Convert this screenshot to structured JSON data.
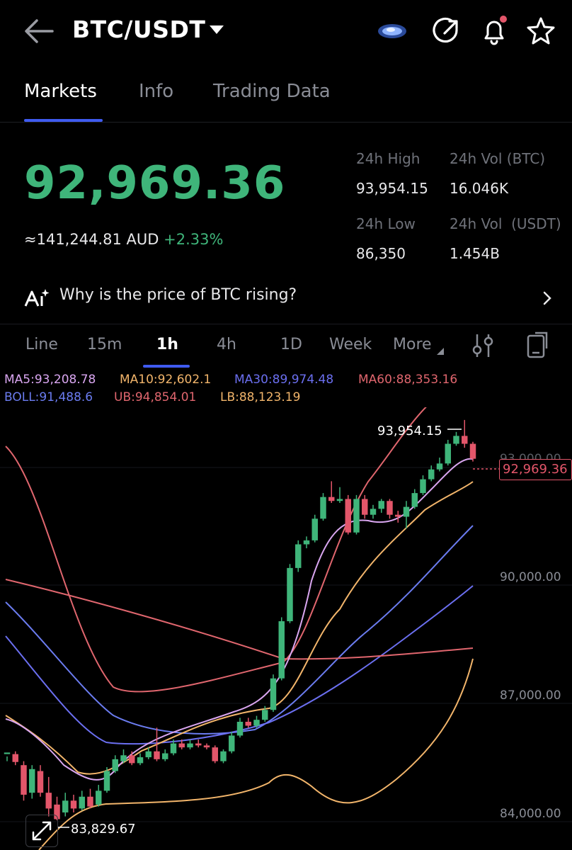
{
  "header": {
    "pair": "BTC/USDT"
  },
  "tabs": [
    {
      "label": "Markets",
      "active": true
    },
    {
      "label": "Info",
      "active": false
    },
    {
      "label": "Trading Data",
      "active": false
    }
  ],
  "ticker": {
    "price": "92,969.36",
    "price_color": "#3fb57a",
    "approx_value": "≈141,244.81",
    "approx_currency": "AUD",
    "change_pct": "+2.33%",
    "stats": {
      "high_label": "24h High",
      "high_value": "93,954.15",
      "vol_btc_label": "24h Vol (BTC)",
      "vol_btc_value": "16.046K",
      "low_label": "24h Low",
      "low_value": "86,350",
      "vol_usdt_label": "24h Vol  (USDT)",
      "vol_usdt_value": "1.454B"
    }
  },
  "insight": {
    "text": "Why is the price of BTC rising?"
  },
  "intervals": [
    {
      "label": "Line",
      "active": false
    },
    {
      "label": "15m",
      "active": false
    },
    {
      "label": "1h",
      "active": true
    },
    {
      "label": "4h",
      "active": false
    },
    {
      "label": "1D",
      "active": false
    },
    {
      "label": "Week",
      "active": false
    },
    {
      "label": "More",
      "active": false
    }
  ],
  "indicators": {
    "ma5": "MA5:93,208.78",
    "ma10": "MA10:92,602.1",
    "ma30": "MA30:89,974.48",
    "ma60": "MA60:88,353.16",
    "boll": "BOLL:91,488.6",
    "ub": "UB:94,854.01",
    "lb": "LB:88,123.19"
  },
  "colors": {
    "up": "#3fb57a",
    "down": "#e3566a",
    "accent": "#3f5bf0",
    "ma5": "#d9a6f0",
    "ma10": "#f2b56b",
    "ma30": "#6b6ff0",
    "ma60": "#e0666e",
    "boll": "#6b7cf0"
  },
  "chart_data": {
    "type": "candlestick",
    "y_axis_labels": [
      "90,000.00",
      "87,000.00",
      "84,000.00"
    ],
    "partial_top_label": "93,000.00",
    "high_marker": "93,954.15",
    "low_marker": "83,829.67",
    "current_price": "92,969.36",
    "ylim": [
      83600,
      94900
    ],
    "candles": [
      [
        85480,
        85520,
        85420,
        85300
      ],
      [
        85480,
        85280,
        85550,
        85200
      ],
      [
        85200,
        84450,
        85300,
        84300
      ],
      [
        84500,
        85100,
        85200,
        84350
      ],
      [
        85050,
        84500,
        85200,
        84400
      ],
      [
        84500,
        84100,
        84900,
        83900
      ],
      [
        84200,
        83830,
        84400,
        83800
      ],
      [
        84000,
        84300,
        84500,
        83900
      ],
      [
        84300,
        84100,
        84450,
        84000
      ],
      [
        84100,
        84400,
        84550,
        84050
      ],
      [
        84400,
        84150,
        84600,
        84100
      ],
      [
        84200,
        84550,
        84700,
        84150
      ],
      [
        84550,
        85050,
        85150,
        84500
      ],
      [
        85050,
        85350,
        85450,
        85000
      ],
      [
        85300,
        85450,
        85600,
        85250
      ],
      [
        85450,
        85250,
        85550,
        85200
      ],
      [
        85250,
        85400,
        85500,
        85200
      ],
      [
        85400,
        85550,
        85650,
        85350
      ],
      [
        85550,
        85350,
        86150,
        85300
      ],
      [
        85350,
        85500,
        85600,
        85300
      ],
      [
        85500,
        85750,
        85850,
        85450
      ],
      [
        85750,
        85650,
        85850,
        85600
      ],
      [
        85650,
        85750,
        85850,
        85600
      ],
      [
        85750,
        85700,
        85850,
        85650
      ],
      [
        85700,
        85650,
        85750,
        85600
      ],
      [
        85650,
        85300,
        85700,
        85250
      ],
      [
        85300,
        85550,
        85600,
        85250
      ],
      [
        85550,
        85950,
        86050,
        85500
      ],
      [
        85950,
        86300,
        86400,
        85900
      ],
      [
        86300,
        86200,
        86400,
        86150
      ],
      [
        86200,
        86350,
        86450,
        86150
      ],
      [
        86350,
        86600,
        86700,
        86300
      ],
      [
        86600,
        87400,
        87500,
        86550
      ],
      [
        87400,
        88850,
        88950,
        87350
      ],
      [
        88850,
        90200,
        90300,
        88800
      ],
      [
        90200,
        90800,
        90900,
        90100
      ],
      [
        90800,
        90900,
        91000,
        90700
      ],
      [
        90900,
        91450,
        91550,
        90850
      ],
      [
        91450,
        92000,
        92100,
        91400
      ],
      [
        92000,
        91900,
        92400,
        91850
      ],
      [
        91900,
        91950,
        92250,
        91850
      ],
      [
        91950,
        91100,
        92050,
        91050
      ],
      [
        91100,
        91950,
        92050,
        91050
      ],
      [
        91950,
        91550,
        92050,
        91450
      ],
      [
        91550,
        91700,
        91800,
        91450
      ],
      [
        91700,
        91900,
        91950,
        91600
      ],
      [
        91900,
        91550,
        91950,
        91450
      ],
      [
        91550,
        91500,
        91650,
        91350
      ],
      [
        91500,
        91750,
        91900,
        91200
      ],
      [
        91750,
        92100,
        92200,
        91700
      ],
      [
        92100,
        92450,
        92550,
        92050
      ],
      [
        92450,
        92700,
        92800,
        92400
      ],
      [
        92700,
        92850,
        93000,
        92650
      ],
      [
        92850,
        93350,
        93450,
        92800
      ],
      [
        93350,
        93550,
        93650,
        93300
      ],
      [
        93550,
        93350,
        93954,
        93250
      ],
      [
        93350,
        92970,
        93400,
        92900
      ]
    ]
  }
}
